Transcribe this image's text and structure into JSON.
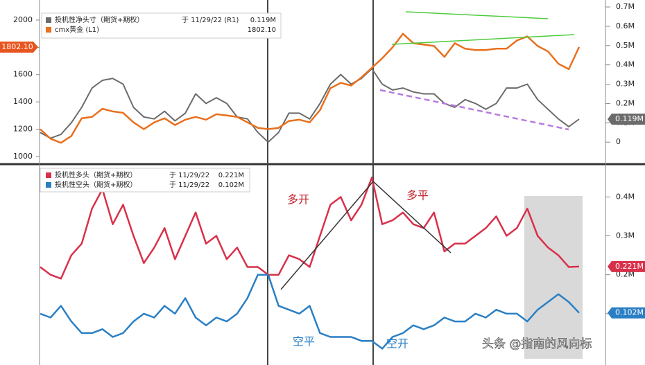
{
  "chart_data": [
    {
      "type": "line",
      "ylim": [
        954,
        2147
      ],
      "yticks": [
        1000,
        1200,
        1400,
        1600,
        1800,
        2000
      ],
      "y2lim": [
        -0.107,
        0.736
      ],
      "y2ticks": [
        {
          "value": 0,
          "label": "0"
        },
        {
          "value": 0.1,
          "label": "0.1M"
        },
        {
          "value": 0.2,
          "label": "0.2M"
        },
        {
          "value": 0.3,
          "label": "0.3M"
        },
        {
          "value": 0.4,
          "label": "0.4M"
        },
        {
          "value": 0.5,
          "label": "0.5M"
        },
        {
          "value": 0.6,
          "label": "0.6M"
        },
        {
          "value": 0.7,
          "label": "0.7M"
        }
      ],
      "series": [
        {
          "name": "投机性净头寸（期货+期权）",
          "legend_date": "于 11/29/22 (R1)",
          "last_label": "0.119M",
          "color": "#6b6b6b",
          "axis": "y2",
          "values": [
            0.05,
            0.02,
            0.04,
            0.1,
            0.18,
            0.28,
            0.32,
            0.33,
            0.3,
            0.18,
            0.13,
            0.12,
            0.16,
            0.11,
            0.15,
            0.25,
            0.2,
            0.23,
            0.2,
            0.13,
            0.12,
            0.05,
            0.0,
            0.05,
            0.15,
            0.15,
            0.12,
            0.2,
            0.3,
            0.35,
            0.3,
            0.33,
            0.38,
            0.3,
            0.27,
            0.28,
            0.26,
            0.25,
            0.25,
            0.2,
            0.18,
            0.22,
            0.2,
            0.17,
            0.2,
            0.28,
            0.28,
            0.3,
            0.22,
            0.17,
            0.12,
            0.08,
            0.119
          ]
        },
        {
          "name": "cmx黄金 (L1)",
          "legend_date": "",
          "last_label": "1802.10",
          "color": "#e8701e",
          "axis": "y",
          "values": [
            1200,
            1130,
            1100,
            1150,
            1280,
            1290,
            1350,
            1330,
            1320,
            1250,
            1200,
            1250,
            1280,
            1230,
            1270,
            1290,
            1270,
            1310,
            1300,
            1290,
            1250,
            1210,
            1200,
            1210,
            1260,
            1270,
            1250,
            1340,
            1500,
            1540,
            1520,
            1580,
            1650,
            1720,
            1800,
            1900,
            1830,
            1820,
            1810,
            1730,
            1830,
            1790,
            1780,
            1780,
            1790,
            1790,
            1850,
            1880,
            1810,
            1770,
            1680,
            1640,
            1802.1
          ]
        }
      ]
    },
    {
      "type": "line",
      "y2lim": [
        -0.016,
        0.479
      ],
      "y2ticks": [
        {
          "value": 0.1,
          "label": "0.1M"
        },
        {
          "value": 0.2,
          "label": "0.2M"
        },
        {
          "value": 0.3,
          "label": "0.3M"
        },
        {
          "value": 0.4,
          "label": "0.4M"
        }
      ],
      "annotations": [
        "多开",
        "多平",
        "空平",
        "空开"
      ],
      "series": [
        {
          "name": "投机性多头（期货+期权）",
          "legend_date": "于 11/29/22",
          "last_label": "0.221M",
          "color": "#d9304a",
          "axis": "y2",
          "values": [
            0.22,
            0.2,
            0.19,
            0.25,
            0.28,
            0.37,
            0.42,
            0.33,
            0.38,
            0.3,
            0.23,
            0.27,
            0.32,
            0.24,
            0.3,
            0.36,
            0.28,
            0.3,
            0.24,
            0.27,
            0.22,
            0.22,
            0.2,
            0.2,
            0.25,
            0.24,
            0.22,
            0.3,
            0.38,
            0.4,
            0.34,
            0.38,
            0.45,
            0.33,
            0.34,
            0.36,
            0.33,
            0.32,
            0.36,
            0.26,
            0.28,
            0.28,
            0.3,
            0.32,
            0.35,
            0.3,
            0.32,
            0.37,
            0.3,
            0.27,
            0.25,
            0.22,
            0.221
          ]
        },
        {
          "name": "投机性空头（期货+期权）",
          "legend_date": "于 11/29/22",
          "last_label": "0.102M",
          "color": "#2a7fc4",
          "axis": "y2",
          "values": [
            0.1,
            0.09,
            0.12,
            0.08,
            0.05,
            0.05,
            0.06,
            0.04,
            0.05,
            0.08,
            0.1,
            0.09,
            0.12,
            0.1,
            0.14,
            0.09,
            0.07,
            0.09,
            0.08,
            0.1,
            0.14,
            0.2,
            0.2,
            0.12,
            0.11,
            0.1,
            0.12,
            0.05,
            0.04,
            0.04,
            0.04,
            0.03,
            0.03,
            0.01,
            0.04,
            0.05,
            0.07,
            0.06,
            0.07,
            0.09,
            0.08,
            0.08,
            0.1,
            0.09,
            0.11,
            0.1,
            0.1,
            0.08,
            0.11,
            0.13,
            0.15,
            0.13,
            0.102
          ]
        }
      ]
    }
  ],
  "watermark": "头条 @指南的风向标"
}
